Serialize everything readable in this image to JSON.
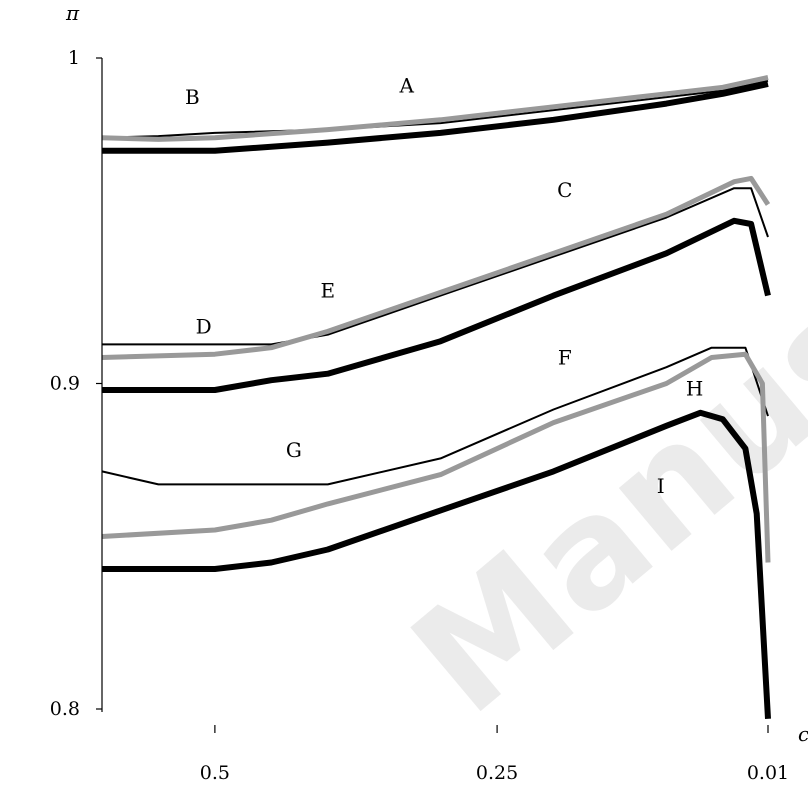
{
  "chart_data": {
    "type": "line",
    "ylabel": "π",
    "xlabel": "c",
    "xlim": [
      0.6,
      0.01
    ],
    "ylim": [
      0.8,
      1.0
    ],
    "x_ticks": [
      {
        "value": 0.5,
        "label": "0.5"
      },
      {
        "value": 0.25,
        "label": "0.25"
      },
      {
        "value": 0.01,
        "label": "0.01"
      }
    ],
    "y_ticks": [
      {
        "value": 0.8,
        "label": "0.8"
      },
      {
        "value": 0.9,
        "label": "0.9"
      },
      {
        "value": 1.0,
        "label": "1"
      }
    ],
    "grid": false,
    "watermark": "Manuscript",
    "style_colors": {
      "thin_black": "#000000",
      "grey": "#999999",
      "thick_black": "#000000"
    },
    "series": [
      {
        "label": "A",
        "style": "thin_black",
        "x": [
          0.6,
          0.55,
          0.5,
          0.4,
          0.3,
          0.2,
          0.1,
          0.05,
          0.01
        ],
        "y": [
          0.9755,
          0.976,
          0.977,
          0.978,
          0.98,
          0.984,
          0.988,
          0.99,
          0.993
        ]
      },
      {
        "label": "B",
        "style": "grey",
        "x": [
          0.6,
          0.55,
          0.5,
          0.4,
          0.3,
          0.2,
          0.1,
          0.05,
          0.01
        ],
        "y": [
          0.9755,
          0.975,
          0.9755,
          0.978,
          0.981,
          0.985,
          0.989,
          0.991,
          0.994
        ]
      },
      {
        "label": "",
        "style": "thick_black",
        "x": [
          0.6,
          0.55,
          0.5,
          0.4,
          0.3,
          0.2,
          0.1,
          0.05,
          0.01
        ],
        "y": [
          0.9715,
          0.9715,
          0.9715,
          0.974,
          0.977,
          0.981,
          0.986,
          0.989,
          0.992
        ]
      },
      {
        "label": "C",
        "style": "thin_black",
        "x": [
          0.6,
          0.5,
          0.45,
          0.4,
          0.3,
          0.2,
          0.1,
          0.04,
          0.025,
          0.01
        ],
        "y": [
          0.912,
          0.912,
          0.912,
          0.915,
          0.927,
          0.939,
          0.951,
          0.96,
          0.96,
          0.945
        ]
      },
      {
        "label": "D",
        "style": "grey",
        "x": [
          0.6,
          0.5,
          0.45,
          0.4,
          0.3,
          0.2,
          0.1,
          0.04,
          0.025,
          0.01
        ],
        "y": [
          0.908,
          0.909,
          0.911,
          0.916,
          0.928,
          0.94,
          0.952,
          0.962,
          0.963,
          0.955
        ]
      },
      {
        "label": "E",
        "style": "thick_black",
        "x": [
          0.6,
          0.5,
          0.45,
          0.4,
          0.3,
          0.2,
          0.1,
          0.04,
          0.025,
          0.01
        ],
        "y": [
          0.898,
          0.898,
          0.901,
          0.903,
          0.913,
          0.927,
          0.94,
          0.95,
          0.949,
          0.927
        ]
      },
      {
        "label": "F",
        "style": "thin_black",
        "x": [
          0.6,
          0.55,
          0.5,
          0.4,
          0.3,
          0.2,
          0.1,
          0.06,
          0.03,
          0.01
        ],
        "y": [
          0.873,
          0.869,
          0.869,
          0.869,
          0.877,
          0.892,
          0.905,
          0.911,
          0.911,
          0.89
        ]
      },
      {
        "label": "G",
        "style": "grey",
        "x": [
          0.6,
          0.5,
          0.45,
          0.4,
          0.3,
          0.2,
          0.1,
          0.06,
          0.03,
          0.015,
          0.01
        ],
        "y": [
          0.853,
          0.855,
          0.858,
          0.863,
          0.872,
          0.888,
          0.9,
          0.908,
          0.909,
          0.9,
          0.845
        ]
      },
      {
        "label": "H",
        "style": "thick_black",
        "x": [
          0.6,
          0.5,
          0.45,
          0.4,
          0.3,
          0.2,
          0.1,
          0.07,
          0.05,
          0.03,
          0.02,
          0.01
        ],
        "y": [
          0.843,
          0.843,
          0.845,
          0.849,
          0.861,
          0.873,
          0.887,
          0.891,
          0.889,
          0.88,
          0.86,
          0.797
        ]
      }
    ],
    "annotations": [
      {
        "text": "A",
        "x": 0.33,
        "y": 0.9915
      },
      {
        "text": "B",
        "x": 0.52,
        "y": 0.988
      },
      {
        "text": "C",
        "x": 0.19,
        "y": 0.9595
      },
      {
        "text": "D",
        "x": 0.51,
        "y": 0.9175
      },
      {
        "text": "E",
        "x": 0.4,
        "y": 0.9285
      },
      {
        "text": "F",
        "x": 0.19,
        "y": 0.908
      },
      {
        "text": "G",
        "x": 0.43,
        "y": 0.8795
      },
      {
        "text": "H",
        "x": 0.075,
        "y": 0.8985
      },
      {
        "text": "I",
        "x": 0.105,
        "y": 0.8685
      }
    ]
  }
}
